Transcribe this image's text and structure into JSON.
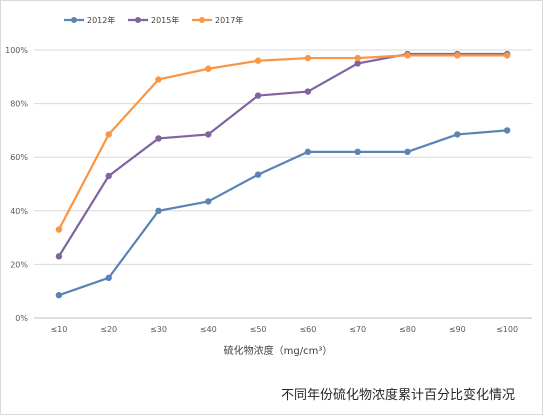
{
  "caption": "不同年份硫化物浓度累计百分比变化情况",
  "chart_data": {
    "type": "line",
    "categories": [
      "≤10",
      "≤20",
      "≤30",
      "≤40",
      "≤50",
      "≤60",
      "≤70",
      "≤80",
      "≤90",
      "≤100"
    ],
    "xlabel": "硫化物浓度（mg/cm³）",
    "ylabel": "",
    "ylim": [
      0,
      100
    ],
    "yticks": [
      "0%",
      "20%",
      "40%",
      "60%",
      "80%",
      "100%"
    ],
    "grid": true,
    "legend_position": "top-left",
    "series": [
      {
        "name": "2012年",
        "color": "#5b84b5",
        "values": [
          8.5,
          15,
          40,
          43.5,
          53.5,
          62,
          62,
          62,
          68.5,
          70
        ]
      },
      {
        "name": "2015年",
        "color": "#8064a2",
        "values": [
          23,
          53,
          67,
          68.5,
          83,
          84.5,
          95,
          98.5,
          98.5,
          98.5
        ]
      },
      {
        "name": "2017年",
        "color": "#f79646",
        "values": [
          33,
          68.5,
          89,
          93,
          96,
          97,
          97,
          98,
          98,
          98
        ]
      }
    ]
  }
}
